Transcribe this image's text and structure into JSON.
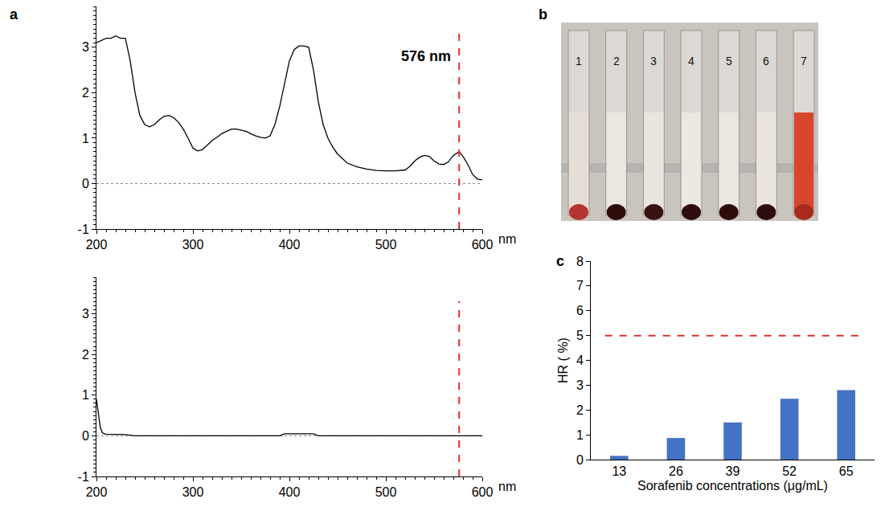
{
  "chart_data": [
    {
      "type": "line",
      "panel": "a",
      "x": [
        200,
        205,
        210,
        215,
        220,
        225,
        230,
        235,
        240,
        245,
        250,
        255,
        260,
        265,
        270,
        275,
        280,
        285,
        290,
        295,
        300,
        305,
        310,
        315,
        320,
        325,
        330,
        335,
        340,
        345,
        350,
        355,
        360,
        365,
        370,
        375,
        380,
        385,
        390,
        395,
        400,
        405,
        410,
        415,
        420,
        425,
        430,
        435,
        440,
        445,
        450,
        460,
        470,
        480,
        490,
        500,
        510,
        520,
        525,
        530,
        535,
        540,
        545,
        550,
        555,
        560,
        565,
        570,
        576,
        580,
        585,
        590,
        595,
        600
      ],
      "values": [
        3.1,
        3.15,
        3.2,
        3.2,
        3.25,
        3.2,
        3.2,
        2.7,
        2.0,
        1.5,
        1.3,
        1.25,
        1.3,
        1.4,
        1.48,
        1.5,
        1.45,
        1.35,
        1.2,
        1.0,
        0.78,
        0.72,
        0.75,
        0.85,
        0.95,
        1.02,
        1.1,
        1.15,
        1.2,
        1.2,
        1.18,
        1.15,
        1.1,
        1.05,
        1.02,
        1.0,
        1.05,
        1.3,
        1.7,
        2.2,
        2.7,
        2.95,
        3.03,
        3.03,
        3.0,
        2.5,
        1.8,
        1.3,
        1.0,
        0.8,
        0.65,
        0.45,
        0.37,
        0.32,
        0.29,
        0.28,
        0.28,
        0.3,
        0.38,
        0.5,
        0.58,
        0.62,
        0.6,
        0.5,
        0.43,
        0.42,
        0.48,
        0.62,
        0.7,
        0.6,
        0.42,
        0.2,
        0.1,
        0.08
      ],
      "color": "#000000",
      "x_label": "nm",
      "xlim": [
        200,
        600
      ],
      "xticks": [
        200,
        300,
        400,
        500,
        600
      ],
      "ylim": [
        -1,
        3.9
      ],
      "yticks": [
        -1,
        0,
        1,
        2,
        3
      ],
      "grid": false,
      "zero_line": true,
      "vline": 576,
      "annotations": [
        {
          "text": "576 nm",
          "x": 576,
          "y": 2.8
        }
      ]
    },
    {
      "type": "line",
      "x": [
        200,
        202,
        204,
        206,
        208,
        210,
        220,
        230,
        240,
        300,
        390,
        395,
        400,
        420,
        425,
        430,
        500,
        600
      ],
      "values": [
        0.9,
        0.5,
        0.2,
        0.08,
        0.05,
        0.04,
        0.03,
        0.03,
        0,
        0,
        0,
        0.05,
        0.05,
        0.05,
        0.05,
        0,
        0,
        0
      ],
      "color": "#000000",
      "x_label": "nm",
      "xlim": [
        200,
        600
      ],
      "xticks": [
        200,
        300,
        400,
        500,
        600
      ],
      "ylim": [
        -1,
        3.9
      ],
      "yticks": [
        -1,
        0,
        1,
        2,
        3
      ],
      "grid": false,
      "zero_line": true,
      "vline": 576
    },
    {
      "type": "bar",
      "panel": "c",
      "categories": [
        "13",
        "26",
        "39",
        "52",
        "65"
      ],
      "values": [
        0.15,
        0.87,
        1.5,
        2.45,
        2.8
      ],
      "color": "#4472c4",
      "x_label": "Sorafenib concentrations (μg/mL)",
      "y_label": "HR ( %)",
      "ylim": [
        0,
        8
      ],
      "yticks": [
        0,
        1,
        2,
        3,
        4,
        5,
        6,
        7,
        8
      ],
      "grid": false,
      "hline": 5
    }
  ],
  "photo": {
    "panel": "b",
    "tube_labels": [
      "1",
      "2",
      "3",
      "4",
      "5",
      "6",
      "7"
    ],
    "liquid_colors": [
      "#e6ded4",
      "#ece6e0",
      "#ebe5df",
      "#ede7e2",
      "#ece6e1",
      "#ebe4de",
      "#d6452c"
    ],
    "pellet_colors": [
      "#b83232",
      "#2e0c0c",
      "#3a1212",
      "#2e0c0c",
      "#2e0c0c",
      "#2e0c0c",
      "#a82a1c"
    ]
  }
}
